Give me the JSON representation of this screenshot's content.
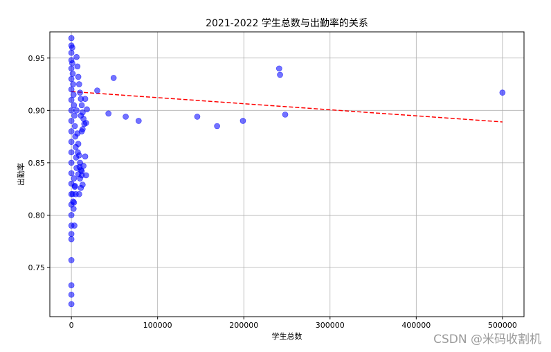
{
  "watermark": "CSDN @米码收割机",
  "chart_data": {
    "type": "scatter",
    "title": "2021-2022 学生总数与出勤率的关系",
    "xlabel": "学生总数",
    "ylabel": "出勤率",
    "xlim": [
      -25000,
      525000
    ],
    "ylim": [
      0.703,
      0.975
    ],
    "xticks": [
      0,
      100000,
      200000,
      300000,
      400000,
      500000
    ],
    "xtick_labels": [
      "0",
      "100000",
      "200000",
      "300000",
      "400000",
      "500000"
    ],
    "yticks": [
      0.75,
      0.8,
      0.85,
      0.9,
      0.95
    ],
    "ytick_labels": [
      "0.75",
      "0.80",
      "0.85",
      "0.90",
      "0.95"
    ],
    "grid": true,
    "colors": {
      "points": "#0000ff",
      "trend": "#ff0000"
    },
    "series": [
      {
        "marker": "circle",
        "x": [
          0,
          0,
          0,
          0,
          0,
          0,
          0,
          0,
          0,
          0,
          0,
          0,
          0,
          0,
          0,
          0,
          0,
          0,
          0,
          0,
          0,
          0,
          0,
          0,
          0,
          0,
          1000,
          1000,
          1500,
          2000,
          2500,
          3000,
          3500,
          4000,
          4500,
          5000,
          5500,
          6000,
          3000,
          4000,
          2000,
          1500,
          2500,
          3500,
          6000,
          7000,
          8000,
          9000,
          10000,
          11000,
          12000,
          13000,
          14000,
          15000,
          16000,
          17000,
          18000,
          7000,
          8000,
          9000,
          10000,
          11000,
          12000,
          13000,
          8000,
          9500,
          10000,
          11000,
          12000,
          13000,
          14000,
          16000,
          5000,
          9000,
          12000,
          17000,
          11000,
          6000,
          7500,
          4000,
          3000,
          30000,
          43000,
          49000,
          63000,
          78000,
          146000,
          169000,
          199000,
          241000,
          242000,
          248000,
          500000
        ],
        "y": [
          0.969,
          0.962,
          0.955,
          0.948,
          0.94,
          0.93,
          0.92,
          0.91,
          0.9,
          0.89,
          0.88,
          0.87,
          0.86,
          0.85,
          0.84,
          0.83,
          0.82,
          0.81,
          0.8,
          0.79,
          0.782,
          0.777,
          0.757,
          0.733,
          0.724,
          0.715,
          0.96,
          0.945,
          0.935,
          0.925,
          0.915,
          0.905,
          0.895,
          0.885,
          0.875,
          0.865,
          0.855,
          0.845,
          0.835,
          0.827,
          0.813,
          0.82,
          0.806,
          0.79,
          0.951,
          0.942,
          0.932,
          0.925,
          0.917,
          0.911,
          0.905,
          0.898,
          0.892,
          0.887,
          0.911,
          0.888,
          0.901,
          0.878,
          0.868,
          0.857,
          0.85,
          0.843,
          0.838,
          0.829,
          0.839,
          0.846,
          0.835,
          0.826,
          0.842,
          0.882,
          0.847,
          0.856,
          0.82,
          0.82,
          0.88,
          0.838,
          0.895,
          0.9,
          0.86,
          0.828,
          0.812,
          0.919,
          0.897,
          0.931,
          0.894,
          0.89,
          0.894,
          0.885,
          0.89,
          0.94,
          0.934,
          0.896,
          0.917
        ]
      }
    ],
    "trendline": {
      "style": "dashed",
      "x": [
        0,
        500000
      ],
      "y": [
        0.918,
        0.889
      ]
    }
  }
}
